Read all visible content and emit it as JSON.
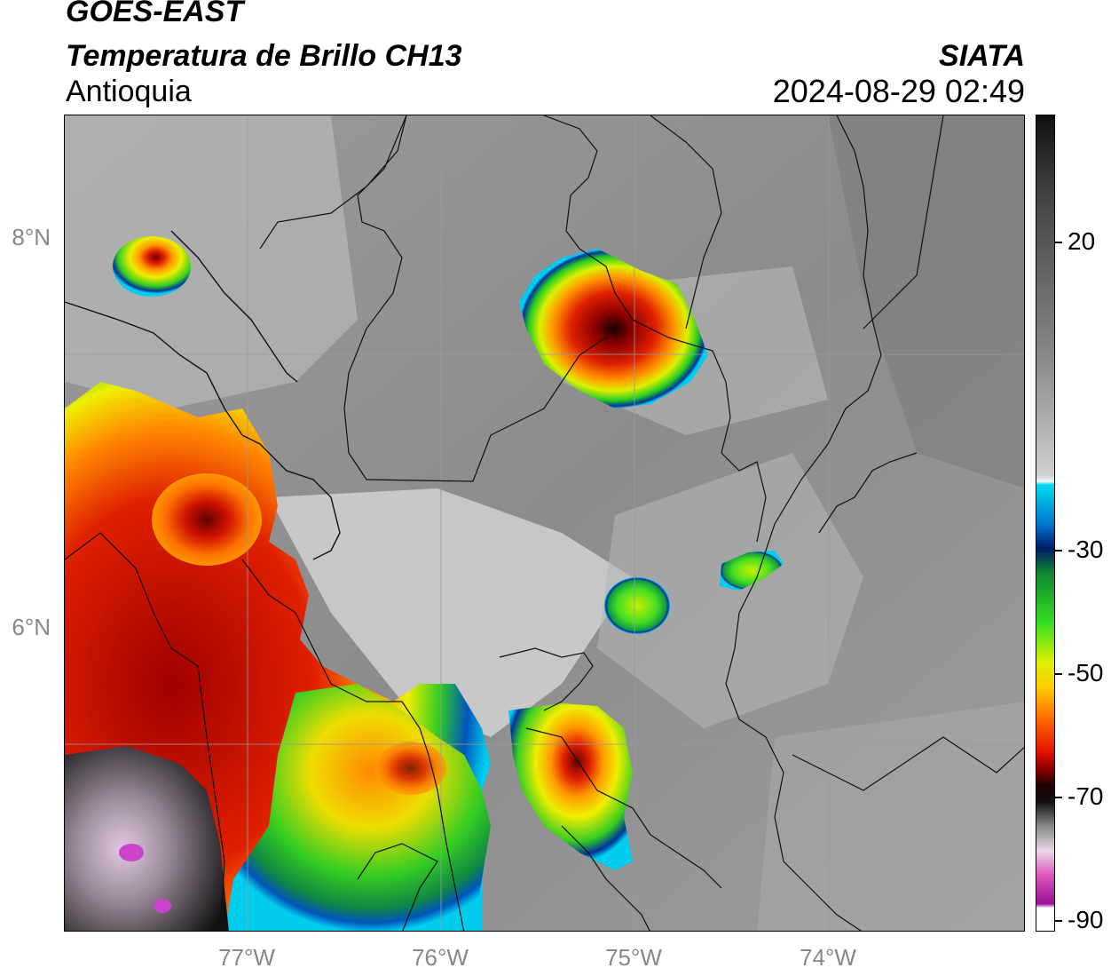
{
  "header": {
    "line1": "GOES-EAST",
    "line2": "Temperatura de Brillo CH13",
    "line3": "Antioquia",
    "brand": "SIATA",
    "timestamp": "2024-08-29 02:49"
  },
  "axes": {
    "lat_labels": [
      {
        "text": "8°N",
        "value": 8
      },
      {
        "text": "6°N",
        "value": 6
      }
    ],
    "lon_labels": [
      {
        "text": "77°W",
        "value": -77
      },
      {
        "text": "76°W",
        "value": -76
      },
      {
        "text": "75°W",
        "value": -75
      },
      {
        "text": "74°W",
        "value": -74
      }
    ]
  },
  "colorbar": {
    "labels": [
      {
        "text": "20",
        "value": 20
      },
      {
        "text": "-30",
        "value": -30
      },
      {
        "text": "-50",
        "value": -50
      },
      {
        "text": "-70",
        "value": -70
      },
      {
        "text": "-90",
        "value": -90
      }
    ]
  }
}
